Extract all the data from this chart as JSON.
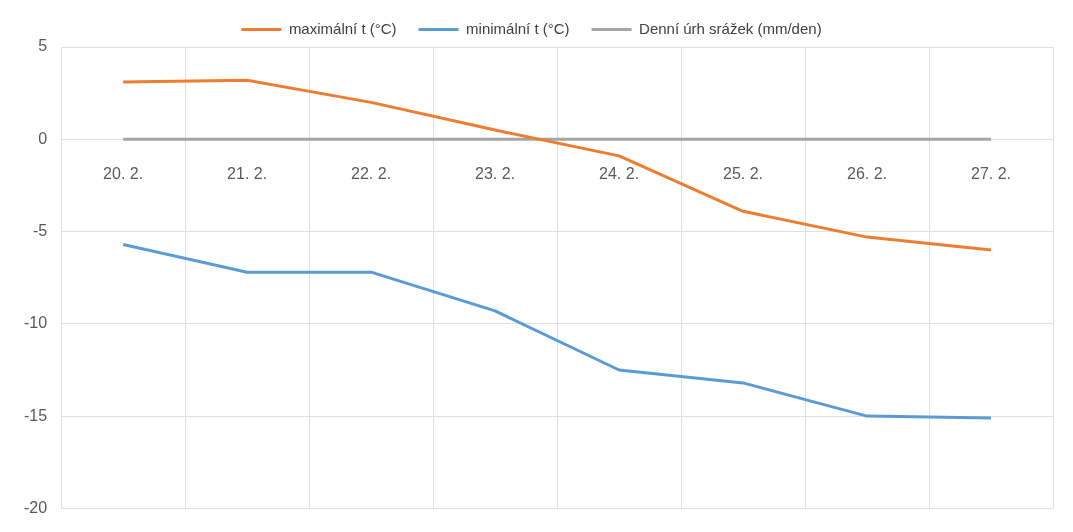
{
  "chart_data": {
    "type": "line",
    "categories": [
      "20. 2.",
      "21. 2.",
      "22. 2.",
      "23. 2.",
      "24. 2.",
      "25. 2.",
      "26. 2.",
      "27. 2."
    ],
    "series": [
      {
        "name": "maximální t (°C)",
        "color": "#ed7d31",
        "values": [
          3.1,
          3.2,
          2.0,
          0.5,
          -0.9,
          -3.9,
          -5.3,
          -6.0
        ]
      },
      {
        "name": "minimální t (°C)",
        "color": "#5b9bd5",
        "values": [
          -5.7,
          -7.2,
          -7.2,
          -9.3,
          -12.5,
          -13.2,
          -15.0,
          -15.1
        ]
      },
      {
        "name": "Denní úrh srážek (mm/den)",
        "color": "#a5a5a5",
        "values": [
          0,
          0,
          0,
          0,
          0,
          0,
          0,
          0
        ]
      }
    ],
    "ylim": [
      -20,
      5
    ],
    "yticks": [
      -20,
      -15,
      -10,
      -5,
      0,
      5
    ],
    "grid": true,
    "legend": "top",
    "marker": "none",
    "line_style": "solid"
  }
}
